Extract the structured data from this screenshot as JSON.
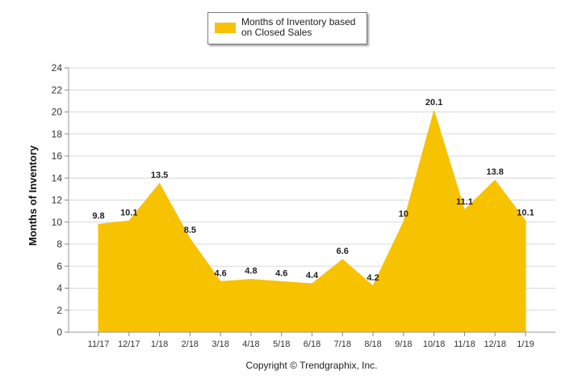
{
  "chart_data": {
    "type": "area",
    "categories": [
      "11/17",
      "12/17",
      "1/18",
      "2/18",
      "3/18",
      "4/18",
      "5/18",
      "6/18",
      "7/18",
      "8/18",
      "9/18",
      "10/18",
      "11/18",
      "12/18",
      "1/19"
    ],
    "series": [
      {
        "name": "Months of Inventory based on Closed Sales",
        "values": [
          9.8,
          10.1,
          13.5,
          8.5,
          4.6,
          4.8,
          4.6,
          4.4,
          6.6,
          4.2,
          10,
          20.1,
          11.1,
          13.8,
          10.1
        ],
        "labels": [
          "9.8",
          "10.1",
          "13.5",
          "8.5",
          "4.6",
          "4.8",
          "4.6",
          "4.4",
          "6.6",
          "4.2",
          "10",
          "20.1",
          "11.1",
          "13.8",
          "10.1"
        ],
        "color": "#f7c200"
      }
    ],
    "ylabel": "Months of Inventory",
    "xlabel": "",
    "ylim": [
      0,
      24
    ],
    "yticks": [
      0,
      2,
      4,
      6,
      8,
      10,
      12,
      14,
      16,
      18,
      20,
      22,
      24
    ],
    "grid": true,
    "legend_position": "top-center"
  },
  "legend": {
    "label": "Months of Inventory based on Closed Sales"
  },
  "footer": {
    "copyright": "Copyright © Trendgraphix, Inc."
  }
}
